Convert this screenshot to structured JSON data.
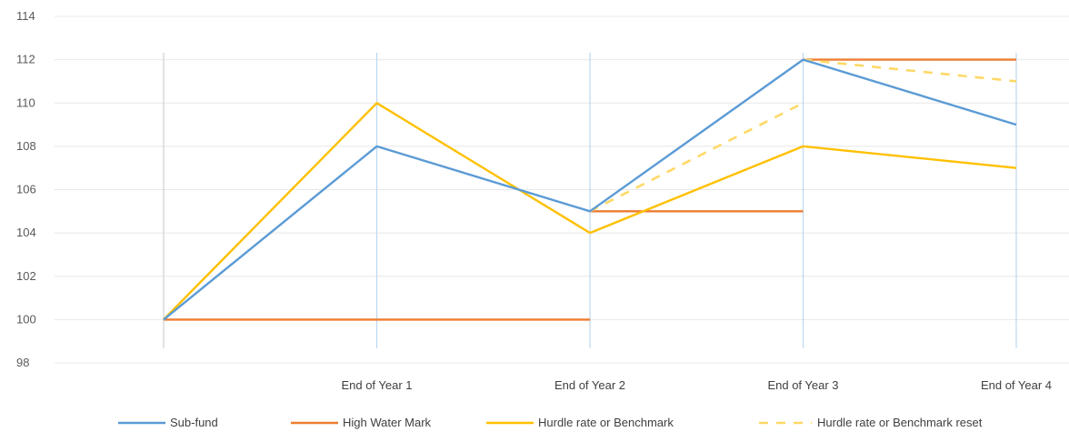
{
  "chart_data": {
    "type": "line",
    "title": "",
    "xlabel": "",
    "ylabel": "",
    "ylim": [
      98,
      114
    ],
    "yticks": [
      98,
      100,
      102,
      104,
      106,
      108,
      110,
      112,
      114
    ],
    "x": [
      0,
      1,
      2,
      3,
      4
    ],
    "categories": [
      "",
      "End of Year 1",
      "End of Year 2",
      "End of Year 3",
      "End of Year 4"
    ],
    "grid": true,
    "legend_position": "bottom",
    "series": [
      {
        "name": "Sub-fund",
        "color": "#5B9BD5",
        "style": "solid",
        "segments": [
          {
            "x": [
              0,
              1,
              2,
              3,
              4
            ],
            "y": [
              100,
              108,
              105,
              112,
              109
            ]
          }
        ]
      },
      {
        "name": "High Water Mark",
        "color": "#ED7D31",
        "style": "solid",
        "segments": [
          {
            "x": [
              0,
              2
            ],
            "y": [
              100,
              100
            ]
          },
          {
            "x": [
              2,
              3
            ],
            "y": [
              105,
              105
            ]
          },
          {
            "x": [
              3,
              4
            ],
            "y": [
              112,
              112
            ]
          }
        ]
      },
      {
        "name": "Hurdle rate or Benchmark",
        "color": "#FFC000",
        "style": "solid",
        "segments": [
          {
            "x": [
              0,
              1,
              2,
              3,
              4
            ],
            "y": [
              100,
              110,
              104,
              108,
              107
            ]
          }
        ]
      },
      {
        "name": "Hurdle rate or Benchmark reset",
        "color": "#FFD966",
        "style": "dashed",
        "segments": [
          {
            "x": [
              2,
              3
            ],
            "y": [
              105,
              110
            ]
          },
          {
            "x": [
              3,
              4
            ],
            "y": [
              112,
              111
            ]
          }
        ]
      }
    ]
  }
}
